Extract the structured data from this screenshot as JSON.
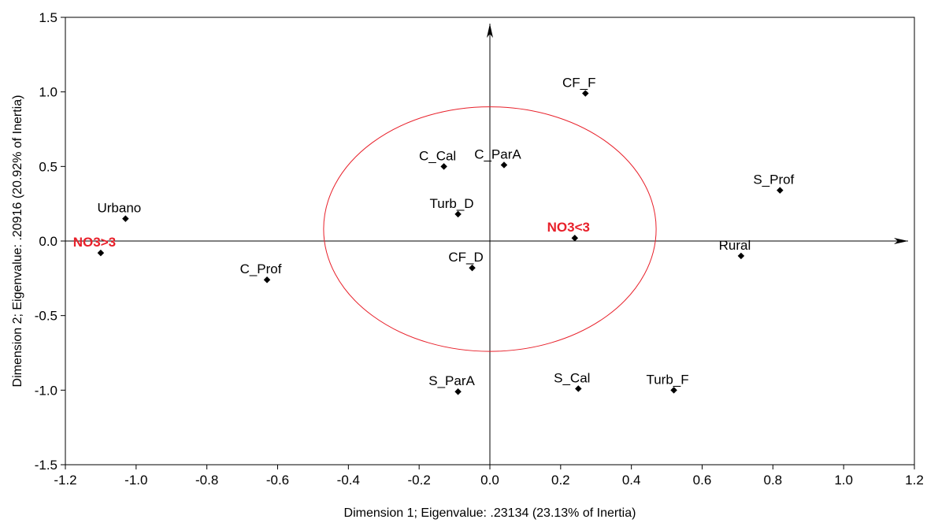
{
  "chart_data": {
    "type": "scatter",
    "title": "",
    "xlabel": "Dimension 1; Eigenvalue: .23134 (23.13% of Inertia)",
    "ylabel": "Dimension 2; Eigenvalue: .20916 (20.92% of Inertia)",
    "xlim": [
      -1.2,
      1.2
    ],
    "ylim": [
      -1.5,
      1.5
    ],
    "xticks": [
      -1.2,
      -1.0,
      -0.8,
      -0.6,
      -0.4,
      -0.2,
      0.0,
      0.2,
      0.4,
      0.6,
      0.8,
      1.0,
      1.2
    ],
    "yticks": [
      -1.5,
      -1.0,
      -0.5,
      0.0,
      0.5,
      1.0,
      1.5
    ],
    "xtick_labels": [
      "-1.2",
      "-1.0",
      "-0.8",
      "-0.6",
      "-0.4",
      "-0.2",
      "0.0",
      "0.2",
      "0.4",
      "0.6",
      "0.8",
      "1.0",
      "1.2"
    ],
    "ytick_labels": [
      "-1.5",
      "-1.0",
      "-0.5",
      "0.0",
      "0.5",
      "1.0",
      "1.5"
    ],
    "grid": false,
    "highlight_color": "#e8202a",
    "marker_color": "#000000",
    "points": [
      {
        "label": "CF_F",
        "x": 0.27,
        "y": 0.99,
        "highlight": false
      },
      {
        "label": "C_Cal",
        "x": -0.13,
        "y": 0.5,
        "highlight": false
      },
      {
        "label": "C_ParA",
        "x": 0.04,
        "y": 0.51,
        "highlight": false
      },
      {
        "label": "S_Prof",
        "x": 0.82,
        "y": 0.34,
        "highlight": false
      },
      {
        "label": "Urbano",
        "x": -1.03,
        "y": 0.15,
        "highlight": false
      },
      {
        "label": "Turb_D",
        "x": -0.09,
        "y": 0.18,
        "highlight": false
      },
      {
        "label": "NO3<3",
        "x": 0.24,
        "y": 0.02,
        "highlight": true
      },
      {
        "label": "NO3>3",
        "x": -1.1,
        "y": -0.08,
        "highlight": true
      },
      {
        "label": "Rural",
        "x": 0.71,
        "y": -0.1,
        "highlight": false
      },
      {
        "label": "CF_D",
        "x": -0.05,
        "y": -0.18,
        "highlight": false
      },
      {
        "label": "C_Prof",
        "x": -0.63,
        "y": -0.26,
        "highlight": false
      },
      {
        "label": "S_ParA",
        "x": -0.09,
        "y": -1.01,
        "highlight": false
      },
      {
        "label": "S_Cal",
        "x": 0.25,
        "y": -0.99,
        "highlight": false
      },
      {
        "label": "Turb_F",
        "x": 0.52,
        "y": -1.0,
        "highlight": false
      }
    ],
    "ellipse": {
      "cx": 0.0,
      "cy": 0.08,
      "rx": 0.47,
      "ry": 0.82,
      "color": "#e8202a"
    }
  }
}
